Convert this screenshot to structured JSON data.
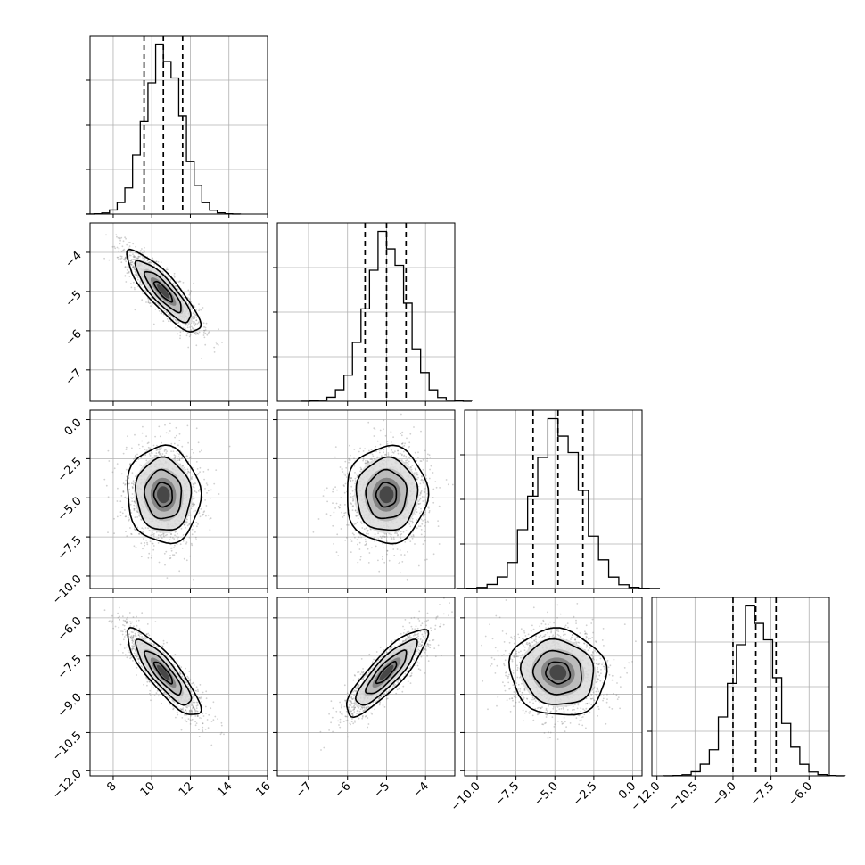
{
  "chart_data": {
    "type": "corner",
    "n_params": 4,
    "grid": true,
    "quantile_style": "dashed",
    "colors": {
      "line": "#000000",
      "grid": "#b0b0b0",
      "points": "#777777",
      "background": "#ffffff"
    },
    "parameters": [
      {
        "index": 0,
        "range": [
          6.8,
          16.0
        ],
        "xticks": [
          8,
          10,
          12,
          14,
          16
        ],
        "xtick_labels": [
          "8",
          "10",
          "12",
          "14",
          "16"
        ],
        "quantiles": [
          9.6,
          10.6,
          11.6
        ],
        "hist_mean": 10.6,
        "hist_sigma": 0.95
      },
      {
        "index": 1,
        "range": [
          -7.8,
          -3.25
        ],
        "ticks": [
          -7,
          -6,
          -5,
          -4
        ],
        "tick_labels": [
          "−7",
          "−6",
          "−5",
          "−4"
        ],
        "quantiles": [
          -5.55,
          -5.0,
          -4.5
        ],
        "hist_mean": -5.0,
        "hist_sigma": 0.52
      },
      {
        "index": 2,
        "range": [
          -10.8,
          0.6
        ],
        "ticks": [
          -10.0,
          -7.5,
          -5.0,
          -2.5,
          0.0
        ],
        "tick_labels": [
          "−10.0",
          "−7.5",
          "−5.0",
          "−2.5",
          "0.0"
        ],
        "quantiles": [
          -6.4,
          -4.8,
          -3.2
        ],
        "hist_mean": -4.8,
        "hist_sigma": 1.55
      },
      {
        "index": 3,
        "range": [
          -12.2,
          -5.2
        ],
        "ticks": [
          -12.0,
          -10.5,
          -9.0,
          -7.5,
          -6.0
        ],
        "tick_labels": [
          "−12.0",
          "−10.5",
          "−9.0",
          "−7.5",
          "−6.0"
        ],
        "quantiles": [
          -9.0,
          -8.1,
          -7.3
        ],
        "hist_mean": -8.15,
        "hist_sigma": 0.85
      }
    ],
    "panels_2d": [
      {
        "row": 1,
        "col": 0,
        "mean": [
          10.6,
          -5.0
        ],
        "sigma": [
          0.95,
          0.52
        ],
        "correlation": -0.85
      },
      {
        "row": 2,
        "col": 0,
        "mean": [
          10.6,
          -4.8
        ],
        "sigma": [
          0.95,
          1.55
        ],
        "correlation": -0.05
      },
      {
        "row": 2,
        "col": 1,
        "mean": [
          -5.0,
          -4.8
        ],
        "sigma": [
          0.52,
          1.55
        ],
        "correlation": 0.02
      },
      {
        "row": 3,
        "col": 0,
        "mean": [
          10.6,
          -8.15
        ],
        "sigma": [
          0.95,
          0.85
        ],
        "correlation": -0.85
      },
      {
        "row": 3,
        "col": 1,
        "mean": [
          -5.0,
          -8.15
        ],
        "sigma": [
          0.52,
          0.85
        ],
        "correlation": 0.85
      },
      {
        "row": 3,
        "col": 2,
        "mean": [
          -4.8,
          -8.15
        ],
        "sigma": [
          1.55,
          0.85
        ],
        "correlation": -0.08
      }
    ],
    "contour_levels_sigma": [
      0.5,
      1.0,
      1.5,
      2.0
    ]
  }
}
